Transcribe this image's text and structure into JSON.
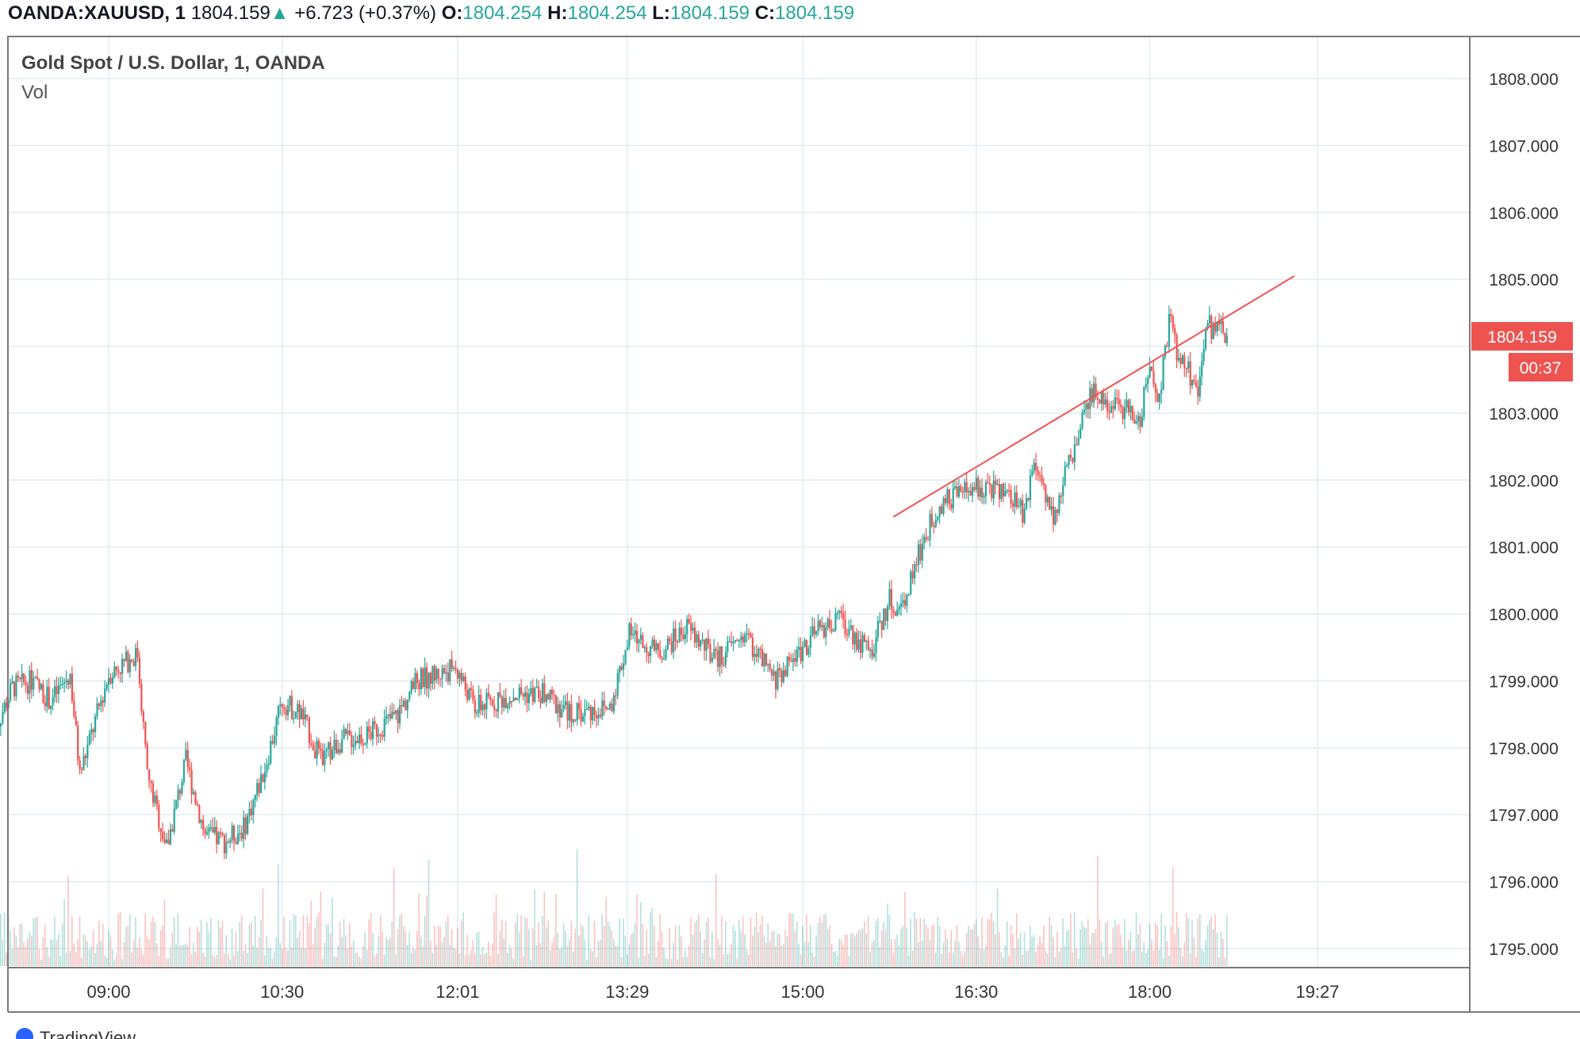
{
  "header": {
    "symbol": "OANDA:XAUUSD, 1",
    "last": "1804.159",
    "change_arrow": "▲",
    "change": "+6.723 (+0.37%)",
    "o_label": "O:",
    "o": "1804.254",
    "h_label": "H:",
    "h": "1804.254",
    "l_label": "L:",
    "l": "1804.159",
    "c_label": "C:",
    "c": "1804.159"
  },
  "legend": {
    "title": "Gold Spot / U.S. Dollar, 1, OANDA",
    "vol": "Vol"
  },
  "price_label": {
    "price": "1804.159",
    "countdown": "00:37"
  },
  "footer": {
    "brand": "TradingView"
  },
  "colors": {
    "up": "#26a69a",
    "down": "#ef5350",
    "trendline": "#ef5350",
    "grid": "#e1ecf2",
    "axis_text": "#333333"
  },
  "chart_data": {
    "type": "candlestick",
    "title": "Gold Spot / U.S. Dollar, 1, OANDA",
    "yticks": [
      "1808.000",
      "1807.000",
      "1806.000",
      "1805.000",
      "1803.000",
      "1802.000",
      "1801.000",
      "1800.000",
      "1799.000",
      "1798.000",
      "1797.000",
      "1796.000",
      "1795.000"
    ],
    "xticks": [
      "09:00",
      "10:30",
      "12:01",
      "13:29",
      "15:00",
      "16:30",
      "18:00",
      "19:27"
    ],
    "ylim": [
      1794.8,
      1808.5
    ],
    "grid": true,
    "last_price": 1804.159,
    "trendline": {
      "start": [
        "15:47",
        1801.45
      ],
      "end": [
        "19:15",
        1805.05
      ]
    },
    "price_path": [
      [
        "08:00",
        1798.2
      ],
      [
        "08:10",
        1798.9
      ],
      [
        "08:20",
        1799.0
      ],
      [
        "08:30",
        1798.7
      ],
      [
        "08:40",
        1799.1
      ],
      [
        "08:45",
        1797.6
      ],
      [
        "08:55",
        1798.6
      ],
      [
        "09:00",
        1799.1
      ],
      [
        "09:15",
        1799.4
      ],
      [
        "09:20",
        1797.6
      ],
      [
        "09:30",
        1796.5
      ],
      [
        "09:40",
        1797.8
      ],
      [
        "09:50",
        1796.7
      ],
      [
        "10:00",
        1796.6
      ],
      [
        "10:10",
        1796.8
      ],
      [
        "10:20",
        1797.6
      ],
      [
        "10:30",
        1798.7
      ],
      [
        "10:40",
        1798.5
      ],
      [
        "10:50",
        1797.8
      ],
      [
        "11:00",
        1798.1
      ],
      [
        "11:15",
        1798.2
      ],
      [
        "11:30",
        1798.5
      ],
      [
        "11:40",
        1799.0
      ],
      [
        "12:00",
        1799.2
      ],
      [
        "12:10",
        1798.6
      ],
      [
        "12:30",
        1798.8
      ],
      [
        "12:45",
        1798.8
      ],
      [
        "13:00",
        1798.5
      ],
      [
        "13:20",
        1798.6
      ],
      [
        "13:30",
        1799.7
      ],
      [
        "13:45",
        1799.4
      ],
      [
        "14:00",
        1799.8
      ],
      [
        "14:15",
        1799.3
      ],
      [
        "14:30",
        1799.7
      ],
      [
        "14:45",
        1799.0
      ],
      [
        "15:00",
        1799.5
      ],
      [
        "15:10",
        1799.8
      ],
      [
        "15:20",
        1799.9
      ],
      [
        "15:35",
        1799.4
      ],
      [
        "15:45",
        1800.2
      ],
      [
        "15:50",
        1800.0
      ],
      [
        "16:00",
        1800.9
      ],
      [
        "16:10",
        1801.6
      ],
      [
        "16:20",
        1801.8
      ],
      [
        "16:35",
        1801.9
      ],
      [
        "16:45",
        1801.8
      ],
      [
        "16:55",
        1801.5
      ],
      [
        "17:00",
        1802.3
      ],
      [
        "17:10",
        1801.5
      ],
      [
        "17:20",
        1802.4
      ],
      [
        "17:30",
        1803.3
      ],
      [
        "17:45",
        1803.1
      ],
      [
        "17:55",
        1802.9
      ],
      [
        "18:00",
        1803.7
      ],
      [
        "18:05",
        1803.2
      ],
      [
        "18:10",
        1804.4
      ],
      [
        "18:15",
        1803.8
      ],
      [
        "18:25",
        1803.4
      ],
      [
        "18:30",
        1804.3
      ],
      [
        "18:40",
        1804.159
      ]
    ]
  }
}
